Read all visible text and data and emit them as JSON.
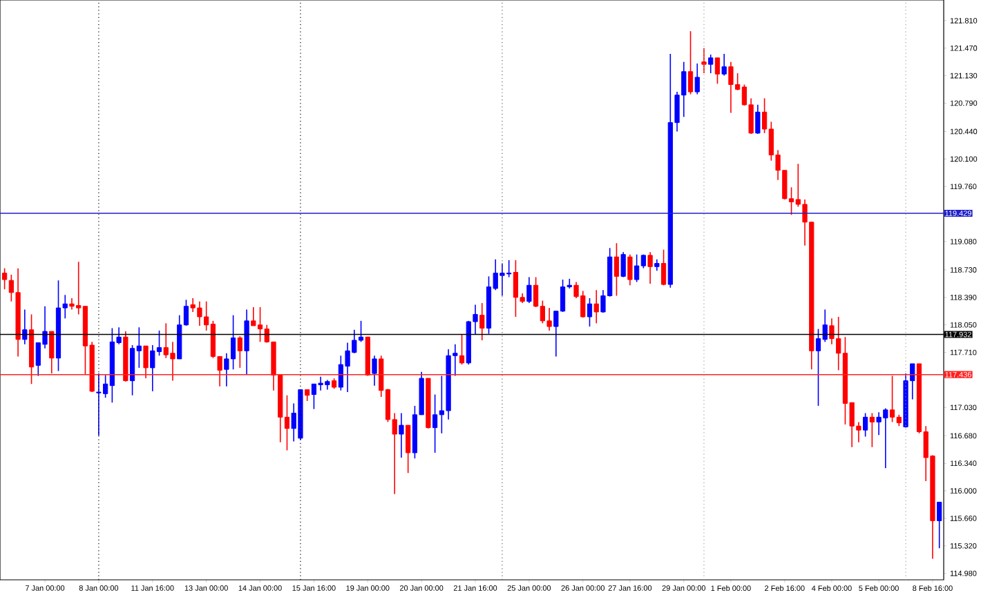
{
  "chart_data": {
    "type": "candlestick",
    "categories": [
      null,
      null,
      null,
      null,
      null,
      null,
      "7 Jan 00:00",
      null,
      null,
      null,
      null,
      null,
      null,
      null,
      "8 Jan 00:00",
      null,
      null,
      null,
      null,
      null,
      null,
      null,
      "11 Jan 16:00",
      null,
      null,
      null,
      null,
      null,
      null,
      null,
      "13 Jan 00:00",
      null,
      null,
      null,
      null,
      null,
      null,
      null,
      "14 Jan 00:00",
      null,
      null,
      null,
      null,
      null,
      null,
      null,
      "15 Jan 16:00",
      null,
      null,
      null,
      null,
      null,
      null,
      null,
      "19 Jan 00:00",
      null,
      null,
      null,
      null,
      null,
      null,
      null,
      "20 Jan 00:00",
      null,
      null,
      null,
      null,
      null,
      null,
      null,
      "21 Jan 16:00",
      null,
      null,
      null,
      null,
      null,
      null,
      null,
      "25 Jan 00:00",
      null,
      null,
      null,
      null,
      null,
      null,
      null,
      "26 Jan 00:00",
      null,
      null,
      null,
      null,
      null,
      null,
      "27 Jan 16:00",
      null,
      null,
      null,
      null,
      null,
      null,
      null,
      "29 Jan 00:00",
      null,
      null,
      null,
      null,
      null,
      null,
      "1 Feb 00:00",
      null,
      null,
      null,
      null,
      null,
      null,
      null,
      "2 Feb 16:00",
      null,
      null,
      null,
      null,
      null,
      null,
      "4 Feb 00:00",
      null,
      null,
      null,
      null,
      null,
      null,
      "5 Feb 00:00",
      null,
      null,
      null,
      null,
      null,
      null,
      null,
      "8 Feb 16:00",
      null
    ],
    "ohlc": [
      [
        118.69,
        118.75,
        118.49,
        118.61
      ],
      [
        118.6,
        118.67,
        118.34,
        118.45
      ],
      [
        118.45,
        118.75,
        117.66,
        117.87
      ],
      [
        117.87,
        118.24,
        117.81,
        117.99
      ],
      [
        117.99,
        118.18,
        117.32,
        117.53
      ],
      [
        117.55,
        117.83,
        117.42,
        117.83
      ],
      [
        117.81,
        118.28,
        117.76,
        117.97
      ],
      [
        117.97,
        117.97,
        117.45,
        117.64
      ],
      [
        117.64,
        118.6,
        117.48,
        118.26
      ],
      [
        118.26,
        118.42,
        118.13,
        118.31
      ],
      [
        118.31,
        118.38,
        118.24,
        118.28
      ],
      [
        118.29,
        118.83,
        118.18,
        118.26
      ],
      [
        118.28,
        118.28,
        117.44,
        117.79
      ],
      [
        117.8,
        117.84,
        117.22,
        117.23
      ],
      [
        117.21,
        117.45,
        116.68,
        117.22
      ],
      [
        117.2,
        117.43,
        117.15,
        117.32
      ],
      [
        117.3,
        118.01,
        117.09,
        117.84
      ],
      [
        117.83,
        118.02,
        117.81,
        117.9
      ],
      [
        117.9,
        117.97,
        117.35,
        117.36
      ],
      [
        117.36,
        117.8,
        117.18,
        117.76
      ],
      [
        117.73,
        118.02,
        117.52,
        117.79
      ],
      [
        117.79,
        117.79,
        117.39,
        117.52
      ],
      [
        117.52,
        117.8,
        117.23,
        117.73
      ],
      [
        117.72,
        117.98,
        117.67,
        117.77
      ],
      [
        117.77,
        118.07,
        117.64,
        117.68
      ],
      [
        117.7,
        117.84,
        117.36,
        117.63
      ],
      [
        117.63,
        118.17,
        117.63,
        118.05
      ],
      [
        118.05,
        118.36,
        118.04,
        118.28
      ],
      [
        118.3,
        118.38,
        118.21,
        118.26
      ],
      [
        118.26,
        118.34,
        118.04,
        118.15
      ],
      [
        118.15,
        118.34,
        117.98,
        118.05
      ],
      [
        118.06,
        118.1,
        117.64,
        117.66
      ],
      [
        117.66,
        117.66,
        117.29,
        117.49
      ],
      [
        117.5,
        117.7,
        117.29,
        117.63
      ],
      [
        117.63,
        118.17,
        117.5,
        117.89
      ],
      [
        117.89,
        117.91,
        117.52,
        117.73
      ],
      [
        117.73,
        118.24,
        117.44,
        118.1
      ],
      [
        118.1,
        118.27,
        118.04,
        118.04
      ],
      [
        118.05,
        118.27,
        117.84,
        118.0
      ],
      [
        118.0,
        118.05,
        117.83,
        117.84
      ],
      [
        117.84,
        117.84,
        117.24,
        117.43
      ],
      [
        117.43,
        117.43,
        116.6,
        116.91
      ],
      [
        116.91,
        117.18,
        116.5,
        116.77
      ],
      [
        116.77,
        117.08,
        116.61,
        116.96
      ],
      [
        116.65,
        117.25,
        116.63,
        117.25
      ],
      [
        117.25,
        117.25,
        117.11,
        117.18
      ],
      [
        117.19,
        117.32,
        117.01,
        117.32
      ],
      [
        117.31,
        117.41,
        117.24,
        117.33
      ],
      [
        117.31,
        117.37,
        117.25,
        117.35
      ],
      [
        117.36,
        117.39,
        117.26,
        117.28
      ],
      [
        117.28,
        117.67,
        117.24,
        117.56
      ],
      [
        117.54,
        117.83,
        117.22,
        117.73
      ],
      [
        117.71,
        117.99,
        117.7,
        117.86
      ],
      [
        117.86,
        118.1,
        117.84,
        117.9
      ],
      [
        117.9,
        117.9,
        117.42,
        117.43
      ],
      [
        117.45,
        117.67,
        117.3,
        117.63
      ],
      [
        117.63,
        117.67,
        117.16,
        117.24
      ],
      [
        117.25,
        117.26,
        116.85,
        116.88
      ],
      [
        116.88,
        116.96,
        115.96,
        116.7
      ],
      [
        116.7,
        116.96,
        116.41,
        116.81
      ],
      [
        116.81,
        116.81,
        116.22,
        116.47
      ],
      [
        116.47,
        117.05,
        116.4,
        116.94
      ],
      [
        116.94,
        117.47,
        116.94,
        117.39
      ],
      [
        117.39,
        117.39,
        116.77,
        116.78
      ],
      [
        116.78,
        117.19,
        116.47,
        116.94
      ],
      [
        116.94,
        117.42,
        116.71,
        116.99
      ],
      [
        116.99,
        117.75,
        116.88,
        117.67
      ],
      [
        117.67,
        117.81,
        117.42,
        117.7
      ],
      [
        117.67,
        117.93,
        117.56,
        117.58
      ],
      [
        117.58,
        118.1,
        117.56,
        118.09
      ],
      [
        118.09,
        118.3,
        117.93,
        118.18
      ],
      [
        118.17,
        118.32,
        117.86,
        118.01
      ],
      [
        118.01,
        118.65,
        117.94,
        118.52
      ],
      [
        118.5,
        118.86,
        118.48,
        118.69
      ],
      [
        118.66,
        118.81,
        118.41,
        118.69
      ],
      [
        118.68,
        118.85,
        118.64,
        118.69
      ],
      [
        118.7,
        118.85,
        118.15,
        118.39
      ],
      [
        118.39,
        118.44,
        118.32,
        118.34
      ],
      [
        118.34,
        118.64,
        118.32,
        118.54
      ],
      [
        118.54,
        118.64,
        118.27,
        118.28
      ],
      [
        118.28,
        118.35,
        118.07,
        118.1
      ],
      [
        118.1,
        118.26,
        117.98,
        118.03
      ],
      [
        118.03,
        118.22,
        117.66,
        118.22
      ],
      [
        118.22,
        118.61,
        118.21,
        118.52
      ],
      [
        118.52,
        118.62,
        118.5,
        118.54
      ],
      [
        118.54,
        118.58,
        118.38,
        118.4
      ],
      [
        118.41,
        118.47,
        118.14,
        118.15
      ],
      [
        118.15,
        118.38,
        118.03,
        118.31
      ],
      [
        118.31,
        118.48,
        118.07,
        118.21
      ],
      [
        118.21,
        118.48,
        118.2,
        118.41
      ],
      [
        118.41,
        119.0,
        118.4,
        118.89
      ],
      [
        118.89,
        119.06,
        118.41,
        118.65
      ],
      [
        118.65,
        118.95,
        118.64,
        118.92
      ],
      [
        118.89,
        118.92,
        118.54,
        118.61
      ],
      [
        118.61,
        118.92,
        118.58,
        118.78
      ],
      [
        118.78,
        118.92,
        118.75,
        118.91
      ],
      [
        118.91,
        118.95,
        118.56,
        118.77
      ],
      [
        118.77,
        118.86,
        118.72,
        118.81
      ],
      [
        118.81,
        118.98,
        118.54,
        118.55
      ],
      [
        118.55,
        121.4,
        118.51,
        120.55
      ],
      [
        120.55,
        120.93,
        120.44,
        120.89
      ],
      [
        120.89,
        121.3,
        120.62,
        121.18
      ],
      [
        121.18,
        121.68,
        120.9,
        120.93
      ],
      [
        120.93,
        121.28,
        120.9,
        121.11
      ],
      [
        121.3,
        121.47,
        121.16,
        121.27
      ],
      [
        121.27,
        121.39,
        121.16,
        121.35
      ],
      [
        121.35,
        121.35,
        121.03,
        121.15
      ],
      [
        121.15,
        121.4,
        121.13,
        121.24
      ],
      [
        121.24,
        121.3,
        120.67,
        121.02
      ],
      [
        121.02,
        121.16,
        120.95,
        120.96
      ],
      [
        120.99,
        121.02,
        120.76,
        120.77
      ],
      [
        120.77,
        120.85,
        120.41,
        120.42
      ],
      [
        120.42,
        120.77,
        120.41,
        120.68
      ],
      [
        120.68,
        120.85,
        120.42,
        120.47
      ],
      [
        120.47,
        120.56,
        120.08,
        120.15
      ],
      [
        120.15,
        120.21,
        119.84,
        119.96
      ],
      [
        119.96,
        119.96,
        119.6,
        119.61
      ],
      [
        119.61,
        119.75,
        119.41,
        119.57
      ],
      [
        119.6,
        120.04,
        119.51,
        119.54
      ],
      [
        119.54,
        119.6,
        119.03,
        119.32
      ],
      [
        119.32,
        119.32,
        117.5,
        117.73
      ],
      [
        117.73,
        118.0,
        117.05,
        117.88
      ],
      [
        117.87,
        118.24,
        117.84,
        118.05
      ],
      [
        118.04,
        118.13,
        117.81,
        117.88
      ],
      [
        117.88,
        118.15,
        117.49,
        117.7
      ],
      [
        117.7,
        117.9,
        116.82,
        117.08
      ],
      [
        117.09,
        117.09,
        116.54,
        116.8
      ],
      [
        116.8,
        116.85,
        116.6,
        116.75
      ],
      [
        116.75,
        116.96,
        116.67,
        116.91
      ],
      [
        116.91,
        116.96,
        116.54,
        116.85
      ],
      [
        116.85,
        116.97,
        116.69,
        116.91
      ],
      [
        116.9,
        117.02,
        116.28,
        117.0
      ],
      [
        117.0,
        117.42,
        116.85,
        116.91
      ],
      [
        116.91,
        116.94,
        116.8,
        116.84
      ],
      [
        116.79,
        117.45,
        116.78,
        117.36
      ],
      [
        117.36,
        117.57,
        117.13,
        117.57
      ],
      [
        117.57,
        117.57,
        116.71,
        116.73
      ],
      [
        116.73,
        116.8,
        116.12,
        116.41
      ],
      [
        116.43,
        116.44,
        115.16,
        115.63
      ],
      [
        115.63,
        115.86,
        115.29,
        115.86
      ]
    ],
    "colors": [
      "#ff0000",
      "#ff0000",
      "#ff0000",
      "#0000ff",
      "#ff0000",
      "#0000ff",
      "#0000ff",
      "#ff0000",
      "#0000ff",
      "#0000ff",
      "#ff0000",
      "#ff0000",
      "#ff0000",
      "#ff0000",
      "#0000ff",
      "#0000ff",
      "#0000ff",
      "#0000ff",
      "#ff0000",
      "#0000ff",
      "#0000ff",
      "#ff0000",
      "#0000ff",
      "#0000ff",
      "#ff0000",
      "#ff0000",
      "#0000ff",
      "#0000ff",
      "#ff0000",
      "#ff0000",
      "#ff0000",
      "#ff0000",
      "#ff0000",
      "#0000ff",
      "#0000ff",
      "#ff0000",
      "#0000ff",
      "#ff0000",
      "#ff0000",
      "#ff0000",
      "#ff0000",
      "#ff0000",
      "#ff0000",
      "#0000ff",
      "#0000ff",
      "#ff0000",
      "#0000ff",
      "#0000ff",
      "#0000ff",
      "#ff0000",
      "#0000ff",
      "#0000ff",
      "#0000ff",
      "#0000ff",
      "#ff0000",
      "#0000ff",
      "#ff0000",
      "#ff0000",
      "#ff0000",
      "#0000ff",
      "#ff0000",
      "#0000ff",
      "#0000ff",
      "#ff0000",
      "#0000ff",
      "#0000ff",
      "#0000ff",
      "#0000ff",
      "#ff0000",
      "#0000ff",
      "#0000ff",
      "#ff0000",
      "#0000ff",
      "#0000ff",
      "#0000ff",
      "#0000ff",
      "#ff0000",
      "#ff0000",
      "#0000ff",
      "#ff0000",
      "#ff0000",
      "#ff0000",
      "#0000ff",
      "#0000ff",
      "#0000ff",
      "#ff0000",
      "#ff0000",
      "#0000ff",
      "#ff0000",
      "#0000ff",
      "#0000ff",
      "#ff0000",
      "#0000ff",
      "#ff0000",
      "#0000ff",
      "#0000ff",
      "#ff0000",
      "#0000ff",
      "#ff0000",
      "#0000ff",
      "#0000ff",
      "#0000ff",
      "#ff0000",
      "#0000ff",
      "#ff0000",
      "#0000ff",
      "#ff0000",
      "#0000ff",
      "#ff0000",
      "#ff0000",
      "#ff0000",
      "#ff0000",
      "#0000ff",
      "#ff0000",
      "#ff0000",
      "#ff0000",
      "#ff0000",
      "#ff0000",
      "#ff0000",
      "#ff0000",
      "#ff0000",
      "#0000ff",
      "#0000ff",
      "#ff0000",
      "#ff0000",
      "#ff0000",
      "#ff0000",
      "#ff0000",
      "#0000ff",
      "#ff0000",
      "#0000ff",
      "#0000ff",
      "#ff0000",
      "#ff0000",
      "#0000ff",
      "#0000ff",
      "#ff0000",
      "#ff0000",
      "#ff0000",
      "#0000ff"
    ],
    "ylim": [
      114.9,
      122.065
    ],
    "yticks": [
      {
        "value": 121.81,
        "label": "121.810"
      },
      {
        "value": 121.47,
        "label": "121.470"
      },
      {
        "value": 121.13,
        "label": "121.130"
      },
      {
        "value": 120.79,
        "label": "120.790"
      },
      {
        "value": 120.44,
        "label": "120.440"
      },
      {
        "value": 120.1,
        "label": "120.100"
      },
      {
        "value": 119.76,
        "label": "119.760"
      },
      {
        "value": 119.08,
        "label": "119.080"
      },
      {
        "value": 118.73,
        "label": "118.730"
      },
      {
        "value": 118.39,
        "label": "118.390"
      },
      {
        "value": 118.05,
        "label": "118.050"
      },
      {
        "value": 117.71,
        "label": "117.710"
      },
      {
        "value": 117.03,
        "label": "117.030"
      },
      {
        "value": 116.68,
        "label": "116.680"
      },
      {
        "value": 116.34,
        "label": "116.340"
      },
      {
        "value": 116.0,
        "label": "116.000"
      },
      {
        "value": 115.66,
        "label": "115.660"
      },
      {
        "value": 115.32,
        "label": "115.320"
      },
      {
        "value": 114.98,
        "label": "114.980"
      }
    ],
    "ref_lines": [
      {
        "axis": "y",
        "value": 119.429,
        "label": "119.429",
        "color": "#1f1fc8",
        "line_style": "solid"
      },
      {
        "axis": "y",
        "value": 117.932,
        "label": "117.932",
        "color": "#000000",
        "line_style": "solid"
      },
      {
        "axis": "y",
        "value": 117.436,
        "label": "117.436",
        "color": "#ff2020",
        "line_style": "solid"
      }
    ]
  }
}
